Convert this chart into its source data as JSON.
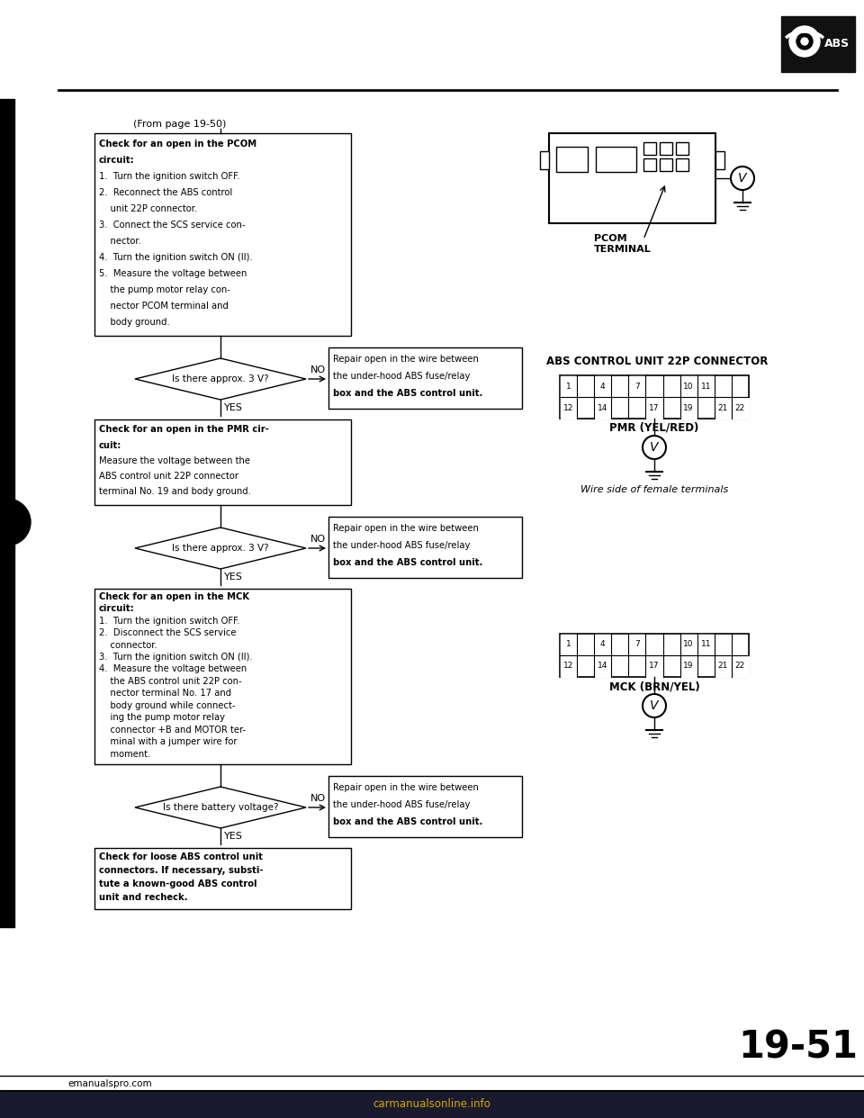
{
  "page_ref": "(From page 19-50)",
  "page_number": "19-51",
  "bg_color": "#ffffff",
  "box1_text_lines": [
    [
      "bold",
      "Check for an open in the PCOM"
    ],
    [
      "bold",
      "circuit:"
    ],
    [
      "normal",
      "1.  Turn the ignition switch OFF."
    ],
    [
      "normal",
      "2.  Reconnect the ABS control"
    ],
    [
      "normal",
      "    unit 22P connector."
    ],
    [
      "normal",
      "3.  Connect the SCS service con-"
    ],
    [
      "normal",
      "    nector."
    ],
    [
      "normal",
      "4.  Turn the ignition switch ON (II)."
    ],
    [
      "normal",
      "5.  Measure the voltage between"
    ],
    [
      "normal",
      "    the pump motor relay con-"
    ],
    [
      "normal",
      "    nector PCOM terminal and"
    ],
    [
      "normal",
      "    body ground."
    ]
  ],
  "box2_text_lines": [
    [
      "bold",
      "Check for an open in the PMR cir-"
    ],
    [
      "bold",
      "cuit:"
    ],
    [
      "normal",
      "Measure the voltage between the"
    ],
    [
      "normal",
      "ABS control unit 22P connector"
    ],
    [
      "normal",
      "terminal No. 19 and body ground."
    ]
  ],
  "box3_text_lines": [
    [
      "bold",
      "Check for an open in the MCK"
    ],
    [
      "bold",
      "circuit:"
    ],
    [
      "normal",
      "1.  Turn the ignition switch OFF."
    ],
    [
      "normal",
      "2.  Disconnect the SCS service"
    ],
    [
      "normal",
      "    connector."
    ],
    [
      "normal",
      "3.  Turn the ignition switch ON (II)."
    ],
    [
      "normal",
      "4.  Measure the voltage between"
    ],
    [
      "normal",
      "    the ABS control unit 22P con-"
    ],
    [
      "normal",
      "    nector terminal No. 17 and"
    ],
    [
      "normal",
      "    body ground while connect-"
    ],
    [
      "normal",
      "    ing the pump motor relay"
    ],
    [
      "normal",
      "    connector +B and MOTOR ter-"
    ],
    [
      "normal",
      "    minal with a jumper wire for"
    ],
    [
      "normal",
      "    moment."
    ]
  ],
  "box4_text_lines": [
    [
      "bold",
      "Check for loose ABS control unit"
    ],
    [
      "bold",
      "connectors. If necessary, substi-"
    ],
    [
      "bold",
      "tute a known-good ABS control"
    ],
    [
      "bold",
      "unit and recheck."
    ]
  ],
  "repair_lines": [
    "Repair open in the wire between",
    "the under-hood ABS fuse/relay",
    "box and the ABS control unit."
  ],
  "diamond1_text": "Is there approx. 3 V?",
  "diamond2_text": "Is there approx. 3 V?",
  "diamond3_text": "Is there battery voltage?",
  "abs_connector_title": "ABS CONTROL UNIT 22P CONNECTOR",
  "pmr_label": "PMR (YEL/RED)",
  "mck_label": "MCK (BRN/YEL)",
  "pcom_label": "PCOM\nTERMINAL",
  "wire_label": "Wire side of female terminals",
  "website": "emanualspro.com",
  "carmanuals_text": "carmanualsonline.info",
  "connector_top_nums": [
    "1",
    "",
    "4",
    "",
    "7",
    "",
    "",
    "10",
    "11",
    "",
    ""
  ],
  "connector_bot_nums": [
    "12",
    "",
    "14",
    "",
    "",
    "17",
    "",
    "19",
    "",
    "21",
    "22"
  ]
}
